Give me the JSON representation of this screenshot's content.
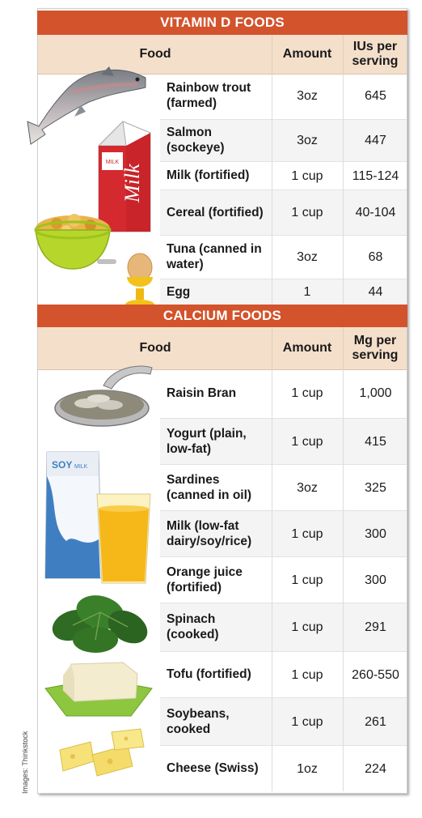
{
  "vitamin_d": {
    "title": "VITAMIN D FOODS",
    "headers": {
      "food": "Food",
      "amount": "Amount",
      "value": "IUs per serving"
    },
    "rows": [
      {
        "food": "Rainbow trout (farmed)",
        "amount": "3oz",
        "value": "645"
      },
      {
        "food": "Salmon (sockeye)",
        "amount": "3oz",
        "value": "447"
      },
      {
        "food": "Milk (fortified)",
        "amount": "1 cup",
        "value": "115-124"
      },
      {
        "food": "Cereal (fortified)",
        "amount": "1 cup",
        "value": "40-104"
      },
      {
        "food": "Tuna (canned in water)",
        "amount": "3oz",
        "value": "68"
      },
      {
        "food": "Egg",
        "amount": "1",
        "value": "44"
      }
    ]
  },
  "calcium": {
    "title": "CALCIUM FOODS",
    "headers": {
      "food": "Food",
      "amount": "Amount",
      "value": "Mg per serving"
    },
    "rows": [
      {
        "food": "Raisin Bran",
        "amount": "1 cup",
        "value": "1,000"
      },
      {
        "food": "Yogurt (plain, low-fat)",
        "amount": "1 cup",
        "value": "415"
      },
      {
        "food": "Sardines (canned in oil)",
        "amount": "3oz",
        "value": "325"
      },
      {
        "food": "Milk (low-fat dairy/soy/rice)",
        "amount": "1 cup",
        "value": "300"
      },
      {
        "food": "Orange juice (fortified)",
        "amount": "1 cup",
        "value": "300"
      },
      {
        "food": "Spinach (cooked)",
        "amount": "1 cup",
        "value": "291"
      },
      {
        "food": "Tofu (fortified)",
        "amount": "1 cup",
        "value": "260-550"
      },
      {
        "food": "Soybeans, cooked",
        "amount": "1 cup",
        "value": "261"
      },
      {
        "food": "Cheese (Swiss)",
        "amount": "1oz",
        "value": "224"
      }
    ]
  },
  "images": {
    "milk_carton_label": "Milk",
    "milk_carton_small": "MILK",
    "soy_carton_label": "SOY",
    "soy_carton_small": "MILK"
  },
  "credit": "Images: Thinkstock",
  "colors": {
    "banner": "#d2532c",
    "header_fill": "#f4dfcb",
    "row_shade": "#f4f4f4"
  }
}
